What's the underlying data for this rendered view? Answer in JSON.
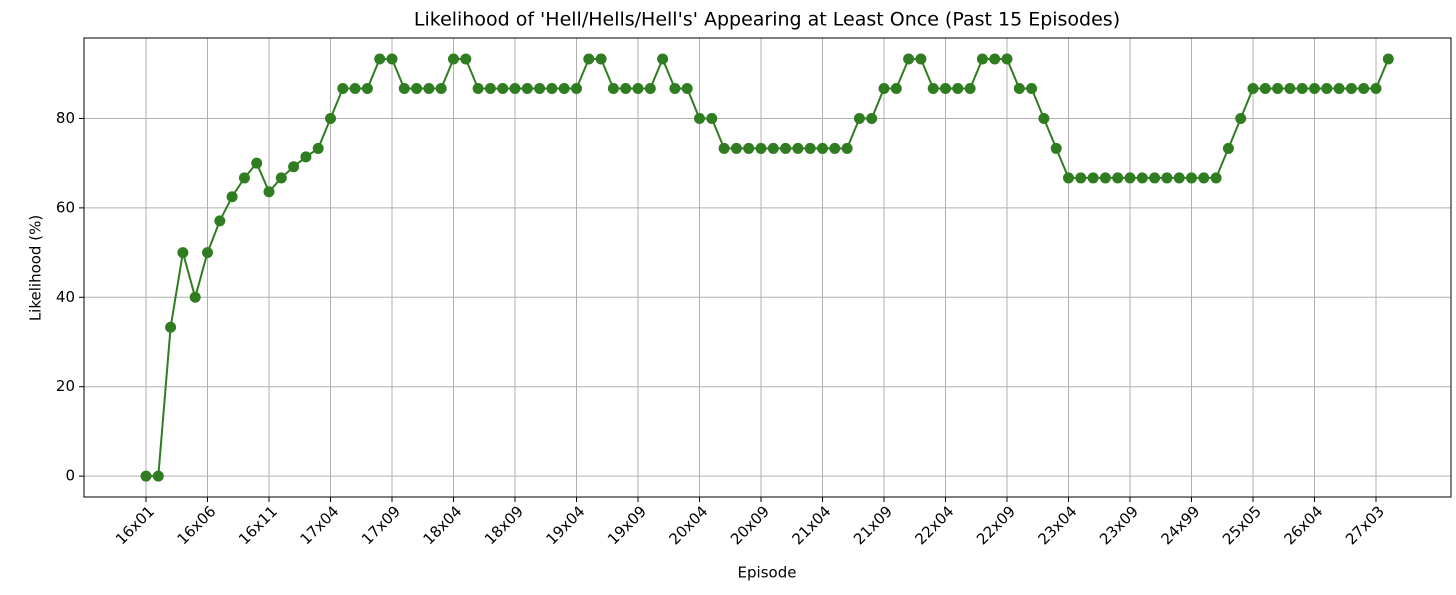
{
  "chart_data": {
    "type": "line",
    "title": "Likelihood of 'Hell/Hells/Hell's' Appearing at Least Once (Past 15 Episodes)",
    "x_label": "Episode",
    "y_label": "Likelihood (%)",
    "categories": [
      "16x01",
      null,
      null,
      null,
      null,
      "16x06",
      null,
      null,
      null,
      null,
      "16x11",
      null,
      null,
      null,
      null,
      "17x04",
      null,
      null,
      null,
      null,
      "17x09",
      null,
      null,
      null,
      null,
      "18x04",
      null,
      null,
      null,
      null,
      "18x09",
      null,
      null,
      null,
      null,
      "19x04",
      null,
      null,
      null,
      null,
      "19x09",
      null,
      null,
      null,
      null,
      "20x04",
      null,
      null,
      null,
      null,
      "20x09",
      null,
      null,
      null,
      null,
      "21x04",
      null,
      null,
      null,
      null,
      "21x09",
      null,
      null,
      null,
      null,
      "22x04",
      null,
      null,
      null,
      null,
      "22x09",
      null,
      null,
      null,
      null,
      "23x04",
      null,
      null,
      null,
      null,
      "23x09",
      null,
      null,
      null,
      null,
      "24x99",
      null,
      null,
      null,
      null,
      "25x05",
      null,
      null,
      null,
      null,
      "26x04",
      null,
      null,
      null,
      null,
      "27x03",
      null
    ],
    "values": [
      0,
      0,
      33.3,
      50,
      40,
      50,
      57.1,
      62.5,
      66.7,
      70,
      63.6,
      66.7,
      69.2,
      71.4,
      73.3,
      80,
      86.7,
      86.7,
      86.7,
      93.3,
      93.3,
      86.7,
      86.7,
      86.7,
      86.7,
      93.3,
      93.3,
      86.7,
      86.7,
      86.7,
      86.7,
      86.7,
      86.7,
      86.7,
      86.7,
      86.7,
      93.3,
      93.3,
      86.7,
      86.7,
      86.7,
      86.7,
      93.3,
      86.7,
      86.7,
      80,
      80,
      73.3,
      73.3,
      73.3,
      73.3,
      73.3,
      73.3,
      73.3,
      73.3,
      73.3,
      73.3,
      73.3,
      80,
      80,
      86.7,
      86.7,
      93.3,
      93.3,
      86.7,
      86.7,
      86.7,
      86.7,
      93.3,
      93.3,
      93.3,
      86.7,
      86.7,
      80,
      73.3,
      66.7,
      66.7,
      66.7,
      66.7,
      66.7,
      66.7,
      66.7,
      66.7,
      66.7,
      66.7,
      66.7,
      66.7,
      66.7,
      73.3,
      80,
      86.7,
      86.7,
      86.7,
      86.7,
      86.7,
      86.7,
      86.7,
      86.7,
      86.7,
      86.7,
      86.7,
      93.3
    ],
    "color": "#2f7d20",
    "ylim": [
      -4.67,
      98
    ],
    "yticks": [
      0,
      20,
      40,
      60,
      80
    ],
    "grid": true
  }
}
